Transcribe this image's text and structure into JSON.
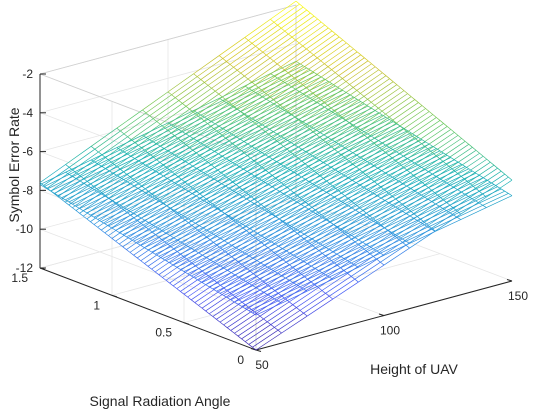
{
  "chart_data": {
    "type": "surface",
    "title": "",
    "xlabel": "Height of UAV",
    "ylabel": "Signal Radiation Angle",
    "zlabel": "Symbol Error Rate",
    "xlim": [
      50,
      150
    ],
    "ylim": [
      0,
      1.5
    ],
    "zlim": [
      -12,
      -2
    ],
    "xticks": [
      "50",
      "100",
      "150"
    ],
    "yticks": [
      "0",
      "0.5",
      "1",
      "1.5"
    ],
    "zticks": [
      "-12",
      "-10",
      "-8",
      "-6",
      "-4",
      "-2"
    ],
    "grid": true,
    "colormap": "parula",
    "series": [
      {
        "surface": "main",
        "z_corners": {
          "x50_y1.5": -7.6,
          "x150_y1.5": -1.8,
          "x150_y0": -6.8,
          "x50_y0": -12.0
        }
      },
      {
        "surface": "plane",
        "z_corners": {
          "x50_y1.5": -7.7,
          "x150_y1.5": -4.9,
          "x150_y0": -7.6,
          "x50_y0": -10.2
        }
      }
    ]
  }
}
